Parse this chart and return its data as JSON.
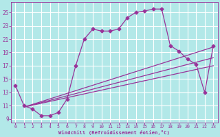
{
  "background_color": "#b2e8e8",
  "grid_color": "#ffffff",
  "line_color": "#993399",
  "xlabel": "Windchill (Refroidissement éolien,°C)",
  "xlabel_color": "#993399",
  "tick_color": "#993399",
  "xlim": [
    -0.5,
    23.5
  ],
  "ylim": [
    8.5,
    26.5
  ],
  "yticks": [
    9,
    11,
    13,
    15,
    17,
    19,
    21,
    23,
    25
  ],
  "xticks": [
    0,
    1,
    2,
    3,
    4,
    5,
    6,
    7,
    8,
    9,
    10,
    11,
    12,
    13,
    14,
    15,
    16,
    17,
    18,
    19,
    20,
    21,
    22,
    23
  ],
  "curve_x": [
    0,
    1,
    2,
    3,
    4,
    5,
    6,
    7,
    8,
    9,
    10,
    11,
    12,
    13,
    14,
    15,
    16,
    17,
    18,
    19,
    20,
    21,
    22,
    23
  ],
  "curve_y": [
    14.0,
    11.0,
    10.5,
    9.5,
    9.5,
    10.0,
    12.0,
    17.0,
    21.0,
    22.5,
    22.2,
    22.2,
    22.5,
    24.2,
    25.0,
    25.2,
    25.5,
    25.5,
    20.0,
    19.2,
    18.0,
    17.2,
    13.0,
    20.0
  ],
  "line1_x": [
    1,
    23
  ],
  "line1_y": [
    10.8,
    19.8
  ],
  "line2_x": [
    1,
    23
  ],
  "line2_y": [
    10.8,
    18.2
  ],
  "line3_x": [
    1,
    23
  ],
  "line3_y": [
    10.8,
    17.0
  ],
  "marker_style": "D",
  "marker_size": 2.5,
  "line_width": 0.9
}
